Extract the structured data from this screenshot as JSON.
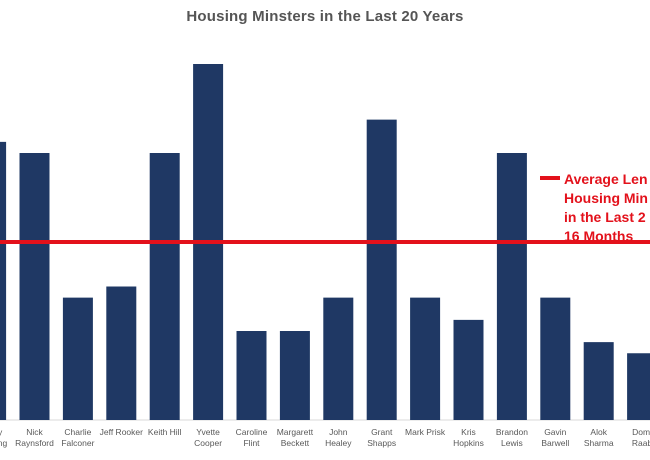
{
  "chart_data": {
    "type": "bar",
    "title": "Housing Minsters in the Last 20 Years",
    "xlabel": "",
    "ylabel": "",
    "ylim": [
      0,
      32
    ],
    "grid": false,
    "categories": [
      "Nick Raynsford",
      "Charlie Falconer",
      "Jeff Rooker",
      "Keith Hill",
      "Yvette Cooper",
      "Caroline Flint",
      "Margarett Beckett",
      "John Healey",
      "Grant Shapps",
      "Mark Prisk",
      "Kris Hopkins",
      "Brandon Lewis",
      "Gavin Barwell",
      "Alok Sharma",
      "Domi Raab"
    ],
    "partial_category_left": "y ong",
    "partial_value_left": 25,
    "series": [
      {
        "values": [
          24,
          11,
          12,
          24,
          32,
          8,
          8,
          11,
          27,
          11,
          9,
          24,
          11,
          7,
          6
        ],
        "color": "#1f3864"
      }
    ],
    "reference_line": {
      "value": 16,
      "color": "#e3111b",
      "label": "Average Len\nHousing Min\nin the Last 2\n16 Months"
    },
    "legend_position": "right"
  }
}
